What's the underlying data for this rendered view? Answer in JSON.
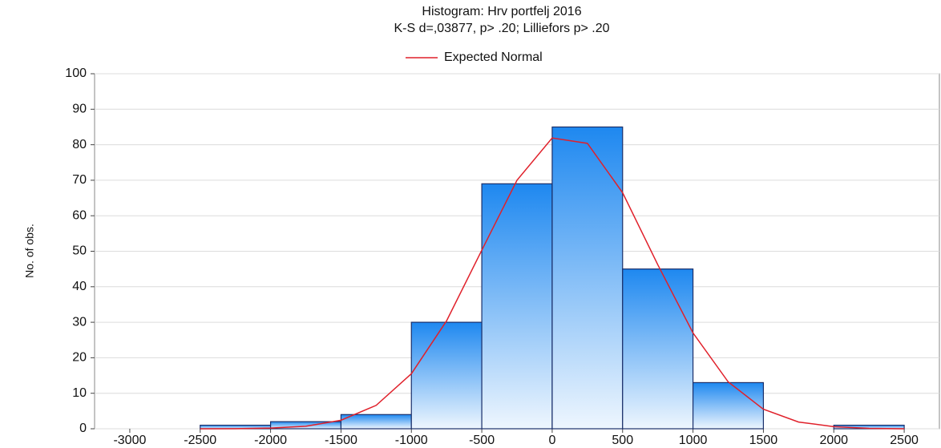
{
  "chart_data": {
    "type": "histogram",
    "title": "Histogram: Hrv portfelj 2016",
    "subtitle": "K-S d=,03877, p> .20; Lilliefors p> .20",
    "ylabel": "No. of obs.",
    "bins": [
      -3000,
      -2500,
      -2000,
      -1500,
      -1000,
      -500,
      0,
      500,
      1000,
      1500,
      2000,
      2500
    ],
    "counts": [
      0,
      1,
      2,
      4,
      30,
      69,
      85,
      45,
      13,
      0,
      1
    ],
    "color": "#1e88f0",
    "series": [
      {
        "name": "Expected Normal",
        "color": "#e0202a",
        "x": [
          -2500,
          -2250,
          -2000,
          -1750,
          -1500,
          -1250,
          -1000,
          -750,
          -500,
          -250,
          0,
          250,
          500,
          750,
          1000,
          1250,
          1500,
          1750,
          2000,
          2250,
          2500
        ],
        "values": [
          0,
          0.04,
          0.2,
          0.7,
          2.4,
          6.6,
          15.5,
          30.4,
          50.3,
          70,
          81.9,
          80.4,
          66.5,
          46.2,
          27,
          13.2,
          5.5,
          1.9,
          0.6,
          0.1,
          0
        ]
      }
    ],
    "xlim": [
      -3250,
      2750
    ],
    "ylim": [
      0,
      100
    ],
    "xticks": [
      -3000,
      -2500,
      -2000,
      -1500,
      -1000,
      -500,
      0,
      500,
      1000,
      1500,
      2000,
      2500
    ],
    "yticks": [
      0,
      10,
      20,
      30,
      40,
      50,
      60,
      70,
      80,
      90,
      100
    ],
    "grid": true
  }
}
